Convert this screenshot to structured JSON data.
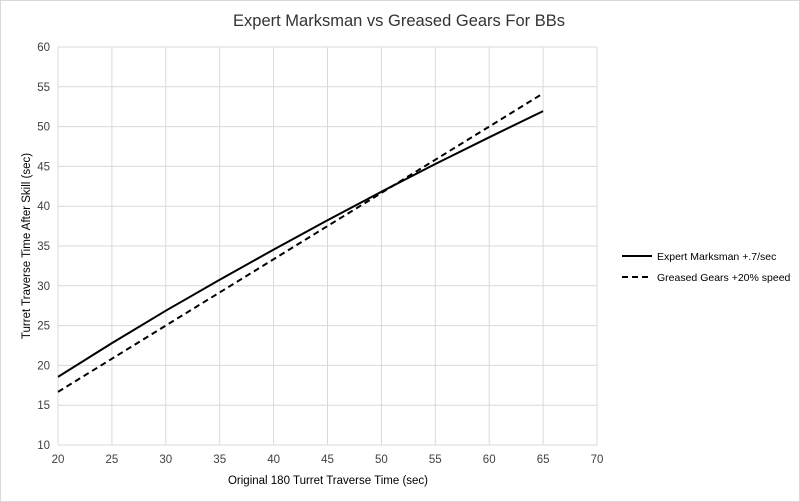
{
  "chart_data": {
    "type": "line",
    "title": "Expert Marksman vs Greased Gears For BBs",
    "xlabel": "Original 180 Turret Traverse Time (sec)",
    "ylabel": "Turret Traverse Time After Skill (sec)",
    "xlim": [
      20,
      70
    ],
    "ylim": [
      10,
      60
    ],
    "xticks": [
      20,
      25,
      30,
      35,
      40,
      45,
      50,
      55,
      60,
      65,
      70
    ],
    "yticks": [
      10,
      15,
      20,
      25,
      30,
      35,
      40,
      45,
      50,
      55,
      60
    ],
    "grid": true,
    "legend_position": "right",
    "series": [
      {
        "name": "Expert Marksman +.7/sec",
        "style": "solid",
        "color": "#000000",
        "x": [
          20,
          25,
          30,
          35,
          40,
          45,
          50,
          55,
          60,
          65
        ],
        "y": [
          18.56,
          22.8,
          26.87,
          30.77,
          34.55,
          38.24,
          41.82,
          45.3,
          48.65,
          51.95
        ]
      },
      {
        "name": "Greased Gears +20% speed",
        "style": "dashed",
        "color": "#000000",
        "x": [
          20,
          65
        ],
        "y": [
          16.67,
          54.17
        ]
      }
    ]
  }
}
